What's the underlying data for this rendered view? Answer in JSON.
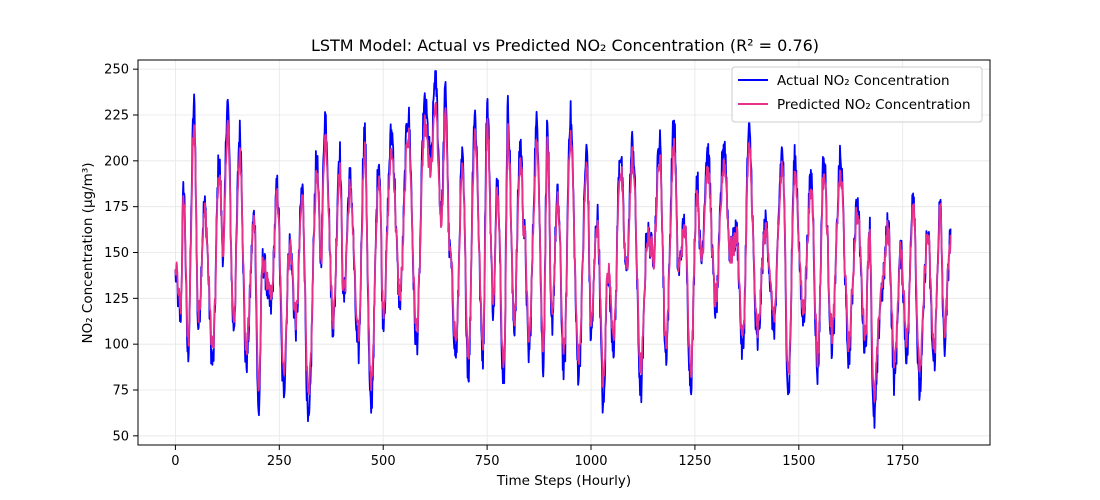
{
  "chart_data": {
    "type": "line",
    "title": "LSTM Model: Actual vs Predicted NO₂ Concentration (R² = 0.76)",
    "xlabel": "Time Steps (Hourly)",
    "ylabel": "NO₂ Concentration (μg/m³)",
    "xlim": [
      -90,
      1960
    ],
    "ylim": [
      45,
      255
    ],
    "x_ticks": [
      0,
      250,
      500,
      750,
      1000,
      1250,
      1500,
      1750
    ],
    "y_ticks": [
      50,
      75,
      100,
      125,
      150,
      175,
      200,
      225,
      250
    ],
    "grid": true,
    "legend_position": "top-right",
    "n_points": 1866,
    "keypoints": {
      "x": [
        0,
        12,
        20,
        30,
        45,
        55,
        70,
        90,
        105,
        115,
        125,
        140,
        155,
        170,
        190,
        200,
        210,
        230,
        245,
        260,
        275,
        290,
        305,
        320,
        340,
        350,
        360,
        380,
        395,
        405,
        420,
        440,
        455,
        470,
        490,
        500,
        520,
        540,
        560,
        580,
        600,
        615,
        625,
        640,
        650,
        660,
        675,
        690,
        705,
        720,
        740,
        750,
        765,
        775,
        790,
        800,
        815,
        830,
        840,
        850,
        870,
        885,
        895,
        905,
        920,
        935,
        950,
        970,
        990,
        1000,
        1015,
        1030,
        1040,
        1055,
        1070,
        1085,
        1100,
        1120,
        1135,
        1150,
        1165,
        1180,
        1200,
        1210,
        1225,
        1240,
        1255,
        1265,
        1280,
        1300,
        1320,
        1335,
        1350,
        1365,
        1380,
        1400,
        1420,
        1440,
        1460,
        1475,
        1490,
        1510,
        1530,
        1545,
        1560,
        1580,
        1600,
        1620,
        1640,
        1660,
        1670,
        1680,
        1700,
        1715,
        1730,
        1745,
        1760,
        1775,
        1790,
        1810,
        1825,
        1840,
        1850,
        1865
      ],
      "actual": [
        138,
        115,
        185,
        95,
        230,
        110,
        175,
        90,
        200,
        150,
        232,
        110,
        215,
        90,
        170,
        62,
        145,
        120,
        185,
        75,
        155,
        110,
        185,
        55,
        200,
        148,
        225,
        110,
        205,
        125,
        190,
        95,
        215,
        65,
        200,
        115,
        215,
        125,
        225,
        100,
        230,
        200,
        247,
        170,
        238,
        150,
        95,
        200,
        85,
        225,
        95,
        230,
        120,
        190,
        75,
        228,
        110,
        210,
        160,
        95,
        220,
        90,
        218,
        110,
        180,
        85,
        225,
        85,
        205,
        105,
        170,
        65,
        140,
        100,
        205,
        140,
        210,
        75,
        160,
        150,
        210,
        95,
        220,
        140,
        165,
        80,
        190,
        145,
        205,
        120,
        210,
        150,
        160,
        95,
        215,
        100,
        165,
        110,
        205,
        75,
        200,
        115,
        190,
        85,
        200,
        100,
        200,
        95,
        175,
        100,
        165,
        58,
        130,
        165,
        80,
        150,
        95,
        185,
        75,
        160,
        90,
        175,
        100,
        158
      ]
    },
    "series": [
      {
        "name": "Actual NO₂ Concentration",
        "color": "#0000ff"
      },
      {
        "name": "Predicted NO₂ Concentration",
        "color": "#e8308a"
      }
    ]
  }
}
